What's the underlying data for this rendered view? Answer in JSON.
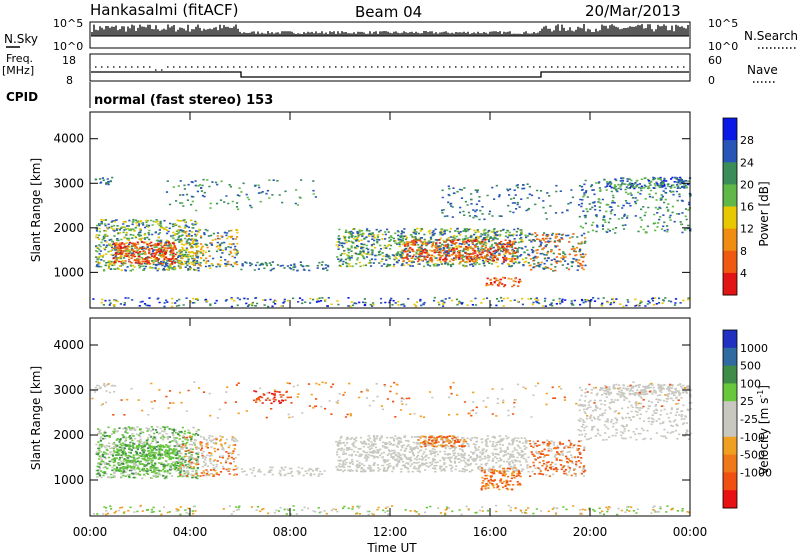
{
  "header": {
    "station": "Hankasalmi (fitACF)",
    "beam": "Beam 04",
    "date": "20/Mar/2013"
  },
  "top_panel": {
    "left_label": "N.Sky",
    "right_label": "N.Search",
    "left_ticks": [
      "10^5",
      "10^0"
    ],
    "right_ticks": [
      "10^5",
      "10^0"
    ]
  },
  "freq_panel": {
    "left_label_1": "Freq.",
    "left_label_2": "[MHz]",
    "right_label": "Nave",
    "left_ticks": [
      "18",
      "8"
    ],
    "right_ticks": [
      "60",
      "0"
    ],
    "cpid_label": "CPID",
    "cpid_text": "normal (fast stereo) 153"
  },
  "colors": {
    "power": [
      "#0a1ae6",
      "#2855b8",
      "#3a8c58",
      "#60b848",
      "#e8c800",
      "#f08c10",
      "#f05a10",
      "#e21515"
    ],
    "velocity": [
      "#2030c0",
      "#2f6aa0",
      "#3f8c48",
      "#66c83a",
      "#c8c8c0",
      "#c8c8c0",
      "#f0a020",
      "#f07818",
      "#f05010",
      "#e81010"
    ],
    "gray": "#c8c8c0"
  },
  "chart_data": [
    {
      "type": "heatmap",
      "name": "power",
      "ylabel": "Slant Range [km]",
      "yticks": [
        1000,
        2000,
        3000,
        4000
      ],
      "ylim": [
        200,
        4600
      ],
      "colorbar": {
        "label": "Power [dB]",
        "ticks": [
          "4",
          "8",
          "12",
          "16",
          "20",
          "24",
          "28"
        ]
      }
    },
    {
      "type": "heatmap",
      "name": "velocity",
      "ylabel": "Slant Range [km]",
      "yticks": [
        1000,
        2000,
        3000,
        4000
      ],
      "ylim": [
        200,
        4600
      ],
      "xlabel": "Time UT",
      "xticks": [
        "00:00",
        "04:00",
        "08:00",
        "12:00",
        "16:00",
        "20:00",
        "00:00"
      ],
      "colorbar": {
        "label": "Velocity [m s",
        "label_sup": "-1",
        "label_end": "]",
        "ticks": [
          "1000",
          "500",
          "100",
          "25",
          "-25",
          "-100",
          "-500",
          "-1000"
        ]
      }
    }
  ]
}
